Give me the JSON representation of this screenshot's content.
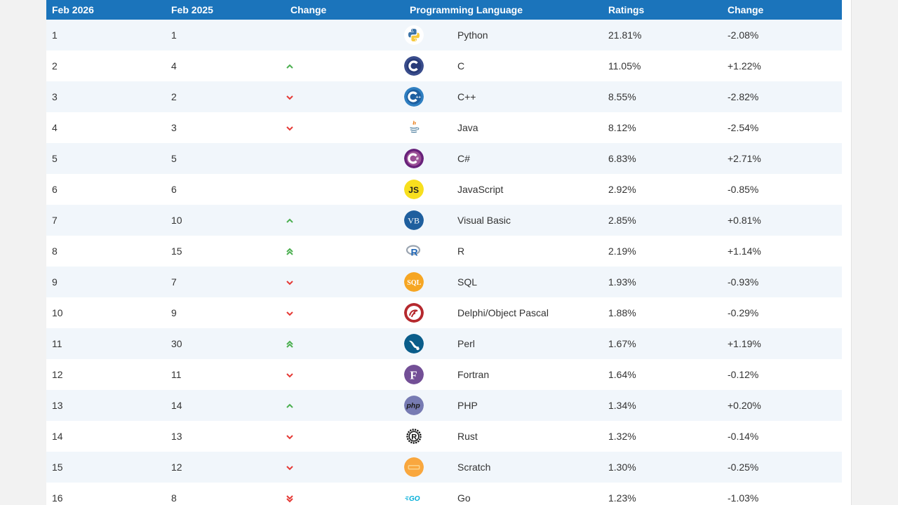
{
  "header": {
    "rank_now": "Feb 2026",
    "rank_prev": "Feb 2025",
    "change": "Change",
    "language": "Programming Language",
    "ratings": "Ratings",
    "rating_change": "Change"
  },
  "colors": {
    "header_bg": "#1b74bb",
    "up": "#4caf50",
    "down": "#e53935",
    "row_alt": "#f1f6fb"
  },
  "rows": [
    {
      "now": "1",
      "prev": "1",
      "trend": "none",
      "icon": "python-icon",
      "language": "Python",
      "rating": "21.81%",
      "change": "-2.08%"
    },
    {
      "now": "2",
      "prev": "4",
      "trend": "up",
      "icon": "c-icon",
      "language": "C",
      "rating": "11.05%",
      "change": "+1.22%"
    },
    {
      "now": "3",
      "prev": "2",
      "trend": "down",
      "icon": "cpp-icon",
      "language": "C++",
      "rating": "8.55%",
      "change": "-2.82%"
    },
    {
      "now": "4",
      "prev": "3",
      "trend": "down",
      "icon": "java-icon",
      "language": "Java",
      "rating": "8.12%",
      "change": "-2.54%"
    },
    {
      "now": "5",
      "prev": "5",
      "trend": "none",
      "icon": "csharp-icon",
      "language": "C#",
      "rating": "6.83%",
      "change": "+2.71%"
    },
    {
      "now": "6",
      "prev": "6",
      "trend": "none",
      "icon": "javascript-icon",
      "language": "JavaScript",
      "rating": "2.92%",
      "change": "-0.85%"
    },
    {
      "now": "7",
      "prev": "10",
      "trend": "up",
      "icon": "visual-basic-icon",
      "language": "Visual Basic",
      "rating": "2.85%",
      "change": "+0.81%"
    },
    {
      "now": "8",
      "prev": "15",
      "trend": "upup",
      "icon": "r-icon",
      "language": "R",
      "rating": "2.19%",
      "change": "+1.14%"
    },
    {
      "now": "9",
      "prev": "7",
      "trend": "down",
      "icon": "sql-icon",
      "language": "SQL",
      "rating": "1.93%",
      "change": "-0.93%"
    },
    {
      "now": "10",
      "prev": "9",
      "trend": "down",
      "icon": "delphi-icon",
      "language": "Delphi/Object Pascal",
      "rating": "1.88%",
      "change": "-0.29%"
    },
    {
      "now": "11",
      "prev": "30",
      "trend": "upup",
      "icon": "perl-icon",
      "language": "Perl",
      "rating": "1.67%",
      "change": "+1.19%"
    },
    {
      "now": "12",
      "prev": "11",
      "trend": "down",
      "icon": "fortran-icon",
      "language": "Fortran",
      "rating": "1.64%",
      "change": "-0.12%"
    },
    {
      "now": "13",
      "prev": "14",
      "trend": "up",
      "icon": "php-icon",
      "language": "PHP",
      "rating": "1.34%",
      "change": "+0.20%"
    },
    {
      "now": "14",
      "prev": "13",
      "trend": "down",
      "icon": "rust-icon",
      "language": "Rust",
      "rating": "1.32%",
      "change": "-0.14%"
    },
    {
      "now": "15",
      "prev": "12",
      "trend": "down",
      "icon": "scratch-icon",
      "language": "Scratch",
      "rating": "1.30%",
      "change": "-0.25%"
    },
    {
      "now": "16",
      "prev": "8",
      "trend": "downdown",
      "icon": "go-icon",
      "language": "Go",
      "rating": "1.23%",
      "change": "-1.03%"
    }
  ]
}
